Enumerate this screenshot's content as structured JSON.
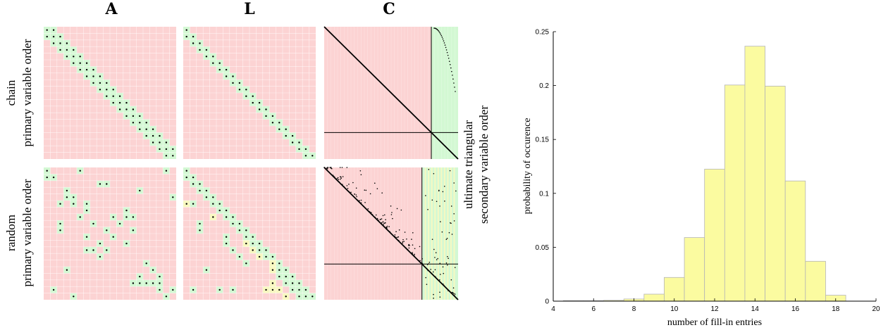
{
  "matrix_figure": {
    "column_headers": [
      "A",
      "L",
      "C"
    ],
    "row_labels": [
      {
        "line1": "chain",
        "line2": "primary variable order"
      },
      {
        "line1": "random",
        "line2": "primary variable order"
      }
    ],
    "right_label": {
      "line1": "ultimate triangular",
      "line2": "secondary variable order"
    },
    "matrix_size": 20,
    "colors": {
      "background": "#fcd3d3",
      "nonzero": "#d3f8d3",
      "fill_in": "#f8f8c0",
      "grid": "#ffffff",
      "dot": "#000000"
    },
    "chain_A": [
      [
        0,
        0
      ],
      [
        0,
        1
      ],
      [
        1,
        0
      ],
      [
        1,
        1
      ],
      [
        1,
        2
      ],
      [
        2,
        1
      ],
      [
        2,
        2
      ],
      [
        2,
        3
      ],
      [
        3,
        2
      ],
      [
        3,
        3
      ],
      [
        3,
        4
      ],
      [
        4,
        3
      ],
      [
        4,
        4
      ],
      [
        4,
        5
      ],
      [
        5,
        4
      ],
      [
        5,
        5
      ],
      [
        5,
        6
      ],
      [
        6,
        5
      ],
      [
        6,
        6
      ],
      [
        6,
        7
      ],
      [
        7,
        6
      ],
      [
        7,
        7
      ],
      [
        7,
        8
      ],
      [
        8,
        7
      ],
      [
        8,
        8
      ],
      [
        8,
        9
      ],
      [
        9,
        8
      ],
      [
        9,
        9
      ],
      [
        9,
        10
      ],
      [
        10,
        9
      ],
      [
        10,
        10
      ],
      [
        10,
        11
      ],
      [
        11,
        10
      ],
      [
        11,
        11
      ],
      [
        11,
        12
      ],
      [
        12,
        11
      ],
      [
        12,
        12
      ],
      [
        12,
        13
      ],
      [
        13,
        12
      ],
      [
        13,
        13
      ],
      [
        13,
        14
      ],
      [
        14,
        13
      ],
      [
        14,
        14
      ],
      [
        14,
        15
      ],
      [
        15,
        14
      ],
      [
        15,
        15
      ],
      [
        15,
        16
      ],
      [
        16,
        15
      ],
      [
        16,
        16
      ],
      [
        16,
        17
      ],
      [
        17,
        16
      ],
      [
        17,
        17
      ],
      [
        17,
        18
      ],
      [
        18,
        17
      ],
      [
        18,
        18
      ],
      [
        18,
        19
      ],
      [
        19,
        18
      ],
      [
        19,
        19
      ]
    ],
    "chain_L": [
      [
        0,
        0
      ],
      [
        1,
        0
      ],
      [
        1,
        1
      ],
      [
        2,
        1
      ],
      [
        2,
        2
      ],
      [
        3,
        2
      ],
      [
        3,
        3
      ],
      [
        4,
        3
      ],
      [
        4,
        4
      ],
      [
        5,
        4
      ],
      [
        5,
        5
      ],
      [
        6,
        5
      ],
      [
        6,
        6
      ],
      [
        7,
        6
      ],
      [
        7,
        7
      ],
      [
        8,
        7
      ],
      [
        8,
        8
      ],
      [
        9,
        8
      ],
      [
        9,
        9
      ],
      [
        10,
        9
      ],
      [
        10,
        10
      ],
      [
        11,
        10
      ],
      [
        11,
        11
      ],
      [
        12,
        11
      ],
      [
        12,
        12
      ],
      [
        13,
        12
      ],
      [
        13,
        13
      ],
      [
        14,
        13
      ],
      [
        14,
        14
      ],
      [
        15,
        14
      ],
      [
        15,
        15
      ],
      [
        16,
        15
      ],
      [
        16,
        16
      ],
      [
        17,
        16
      ],
      [
        17,
        17
      ],
      [
        18,
        17
      ],
      [
        18,
        18
      ],
      [
        19,
        18
      ],
      [
        19,
        19
      ]
    ],
    "random_A": [
      [
        0,
        0
      ],
      [
        0,
        5
      ],
      [
        0,
        18
      ],
      [
        1,
        0
      ],
      [
        1,
        1
      ],
      [
        2,
        8
      ],
      [
        2,
        9
      ],
      [
        3,
        3
      ],
      [
        3,
        14
      ],
      [
        4,
        3
      ],
      [
        4,
        4
      ],
      [
        4,
        19
      ],
      [
        5,
        2
      ],
      [
        5,
        4
      ],
      [
        5,
        6
      ],
      [
        6,
        6
      ],
      [
        6,
        12
      ],
      [
        7,
        5
      ],
      [
        7,
        10
      ],
      [
        7,
        12
      ],
      [
        7,
        13
      ],
      [
        8,
        2
      ],
      [
        8,
        7
      ],
      [
        8,
        11
      ],
      [
        9,
        2
      ],
      [
        9,
        9
      ],
      [
        9,
        13
      ],
      [
        10,
        6
      ],
      [
        10,
        10
      ],
      [
        11,
        8
      ],
      [
        11,
        12
      ],
      [
        12,
        6
      ],
      [
        12,
        7
      ],
      [
        12,
        9
      ],
      [
        13,
        8
      ],
      [
        14,
        15
      ],
      [
        15,
        3
      ],
      [
        15,
        16
      ],
      [
        16,
        14
      ],
      [
        16,
        17
      ],
      [
        17,
        13
      ],
      [
        17,
        14
      ],
      [
        17,
        15
      ],
      [
        17,
        16
      ],
      [
        17,
        17
      ],
      [
        18,
        1
      ],
      [
        18,
        17
      ],
      [
        18,
        19
      ],
      [
        19,
        4
      ],
      [
        19,
        18
      ]
    ],
    "random_L": [
      [
        0,
        0
      ],
      [
        1,
        0
      ],
      [
        1,
        1
      ],
      [
        2,
        1
      ],
      [
        2,
        2
      ],
      [
        3,
        2
      ],
      [
        3,
        3
      ],
      [
        4,
        3
      ],
      [
        4,
        4
      ],
      [
        5,
        0
      ],
      [
        5,
        1
      ],
      [
        5,
        4
      ],
      [
        5,
        5
      ],
      [
        6,
        5
      ],
      [
        6,
        6
      ],
      [
        7,
        4
      ],
      [
        7,
        6
      ],
      [
        7,
        7
      ],
      [
        8,
        2
      ],
      [
        8,
        7
      ],
      [
        8,
        8
      ],
      [
        9,
        2
      ],
      [
        9,
        8
      ],
      [
        9,
        9
      ],
      [
        10,
        6
      ],
      [
        10,
        9
      ],
      [
        10,
        10
      ],
      [
        11,
        6
      ],
      [
        11,
        9
      ],
      [
        11,
        10
      ],
      [
        11,
        11
      ],
      [
        12,
        7
      ],
      [
        12,
        10
      ],
      [
        12,
        11
      ],
      [
        12,
        12
      ],
      [
        13,
        8
      ],
      [
        13,
        11
      ],
      [
        13,
        12
      ],
      [
        13,
        13
      ],
      [
        14,
        9
      ],
      [
        14,
        13
      ],
      [
        14,
        14
      ],
      [
        15,
        3
      ],
      [
        15,
        13
      ],
      [
        15,
        14
      ],
      [
        15,
        15
      ],
      [
        16,
        14
      ],
      [
        16,
        15
      ],
      [
        16,
        16
      ],
      [
        17,
        13
      ],
      [
        17,
        15
      ],
      [
        17,
        16
      ],
      [
        17,
        17
      ],
      [
        18,
        1
      ],
      [
        18,
        5
      ],
      [
        18,
        7
      ],
      [
        18,
        12
      ],
      [
        18,
        13
      ],
      [
        18,
        14
      ],
      [
        18,
        16
      ],
      [
        18,
        17
      ],
      [
        18,
        18
      ],
      [
        19,
        15
      ],
      [
        19,
        17
      ],
      [
        19,
        18
      ],
      [
        19,
        19
      ]
    ],
    "random_L_fill": [
      [
        5,
        0
      ],
      [
        7,
        4
      ],
      [
        11,
        9
      ],
      [
        12,
        10
      ],
      [
        13,
        11
      ],
      [
        14,
        13
      ],
      [
        15,
        13
      ],
      [
        17,
        13
      ],
      [
        18,
        12
      ],
      [
        18,
        13
      ],
      [
        18,
        14
      ],
      [
        19,
        15
      ]
    ]
  },
  "chart_data": {
    "type": "bar",
    "bin_edges": [
      4.5,
      5.5,
      6.5,
      7.5,
      8.5,
      9.5,
      10.5,
      11.5,
      12.5,
      13.5,
      14.5,
      15.5,
      16.5,
      17.5,
      18.5
    ],
    "values": [
      0.0005,
      0.0005,
      0.0008,
      0.002,
      0.0065,
      0.022,
      0.059,
      0.1225,
      0.2005,
      0.2365,
      0.1995,
      0.1115,
      0.037,
      0.0055
    ],
    "xlabel": "number of fill-in entries",
    "ylabel": "probability of occurence",
    "xlim": [
      4,
      20
    ],
    "ylim": [
      0,
      0.25
    ],
    "xticks": [
      "4",
      "6",
      "8",
      "10",
      "12",
      "14",
      "16",
      "18",
      "20"
    ],
    "yticks": [
      "0",
      "0.05",
      "0.1",
      "0.15",
      "0.2",
      "0.25"
    ],
    "bar_color": "#fbfba0",
    "grid": false,
    "legend": "none"
  }
}
